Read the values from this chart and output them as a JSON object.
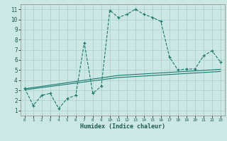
{
  "x": [
    0,
    1,
    2,
    3,
    4,
    5,
    6,
    7,
    8,
    9,
    10,
    11,
    12,
    13,
    14,
    15,
    16,
    17,
    18,
    19,
    20,
    21,
    22,
    23
  ],
  "y_main": [
    3.2,
    1.5,
    2.5,
    2.7,
    1.2,
    2.2,
    2.5,
    7.7,
    2.7,
    3.4,
    10.9,
    10.2,
    10.5,
    11.0,
    10.5,
    10.2,
    9.8,
    6.3,
    5.0,
    5.1,
    5.1,
    6.4,
    6.9,
    5.8
  ],
  "y_line1": [
    3.15,
    3.27,
    3.39,
    3.51,
    3.63,
    3.75,
    3.87,
    3.99,
    4.11,
    4.23,
    4.35,
    4.47,
    4.52,
    4.57,
    4.62,
    4.67,
    4.72,
    4.77,
    4.82,
    4.87,
    4.92,
    4.97,
    5.02,
    5.07
  ],
  "y_line2": [
    3.05,
    3.16,
    3.27,
    3.38,
    3.49,
    3.6,
    3.71,
    3.82,
    3.93,
    4.04,
    4.15,
    4.26,
    4.31,
    4.36,
    4.41,
    4.46,
    4.51,
    4.56,
    4.61,
    4.66,
    4.71,
    4.76,
    4.81,
    4.86
  ],
  "bg_color": "#cce8e4",
  "grid_color": "#aacfcc",
  "line_color": "#1a7a6e",
  "xlabel": "Humidex (Indice chaleur)",
  "xlim": [
    -0.5,
    23.5
  ],
  "ylim": [
    0.5,
    11.5
  ],
  "xticks": [
    0,
    1,
    2,
    3,
    4,
    5,
    6,
    7,
    8,
    9,
    10,
    11,
    12,
    13,
    14,
    15,
    16,
    17,
    18,
    19,
    20,
    21,
    22,
    23
  ],
  "yticks": [
    1,
    2,
    3,
    4,
    5,
    6,
    7,
    8,
    9,
    10,
    11
  ]
}
